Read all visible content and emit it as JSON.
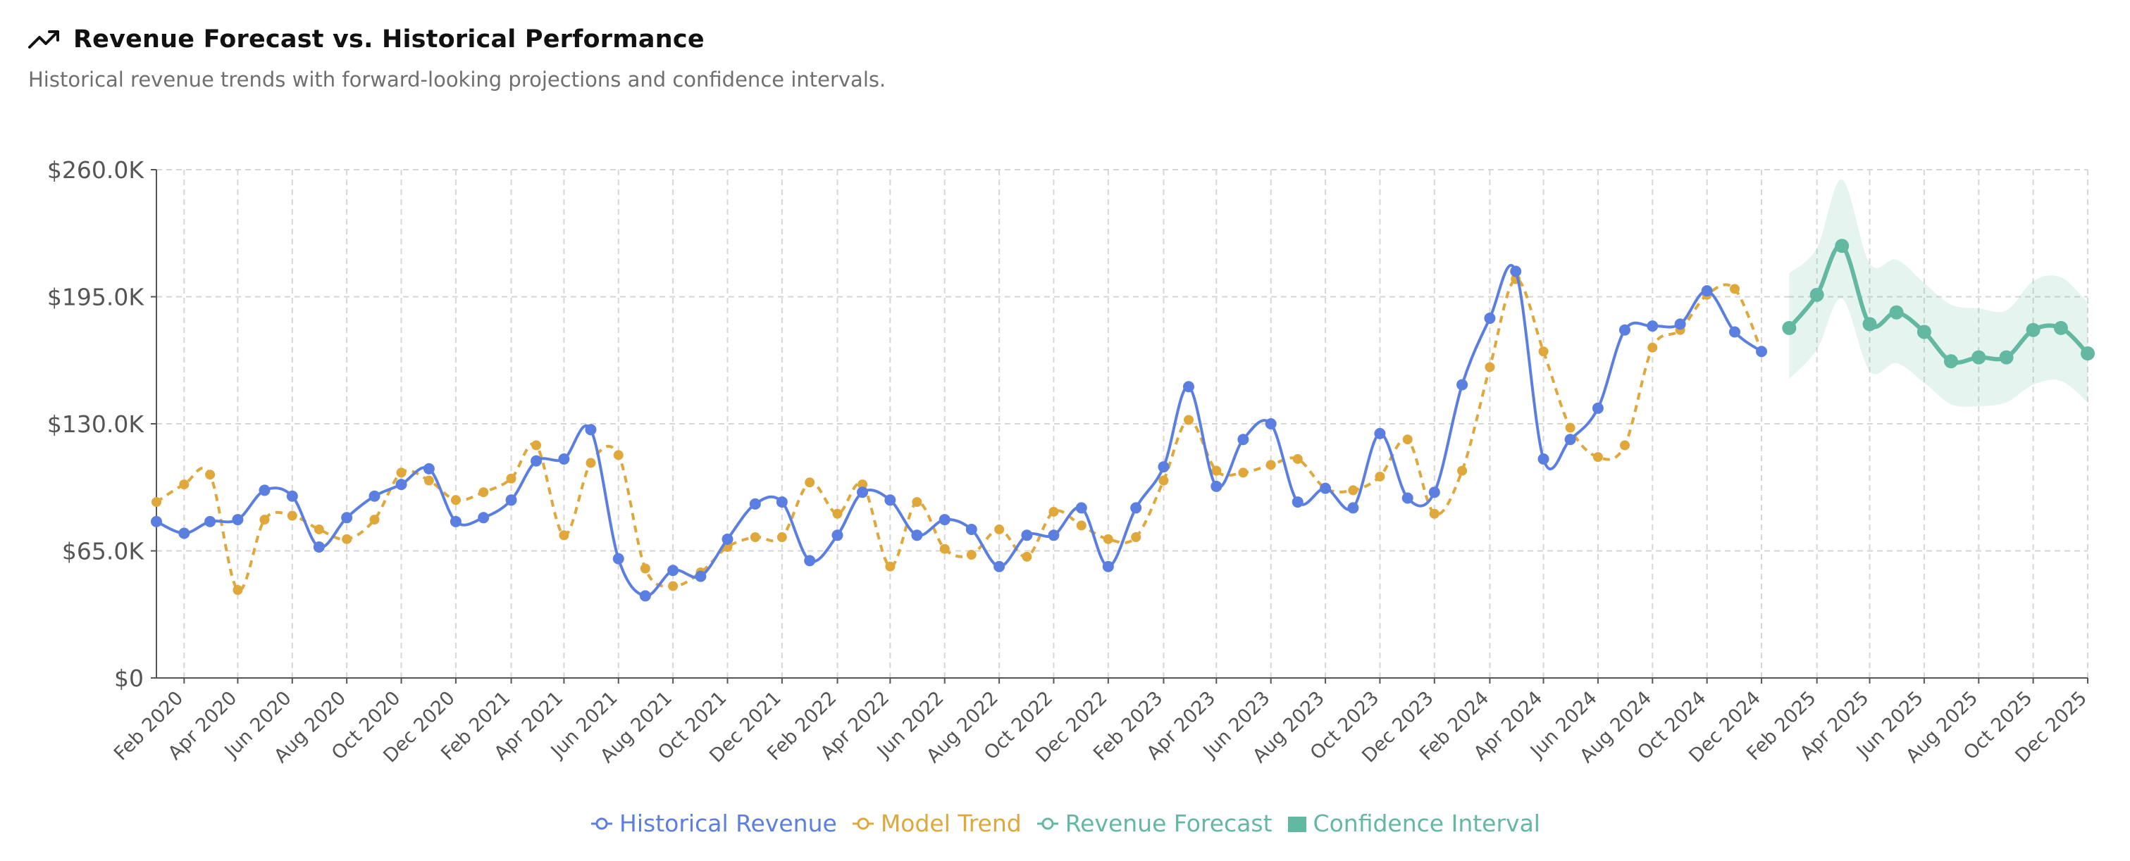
{
  "header": {
    "title": "Revenue Forecast vs. Historical Performance",
    "subtitle": "Historical revenue trends with forward-looking projections and confidence intervals.",
    "icon": "trending-up-icon"
  },
  "legend": {
    "historical": "Historical Revenue",
    "trend": "Model Trend",
    "forecast": "Revenue Forecast",
    "ci": "Confidence Interval"
  },
  "colors": {
    "historical": "#5b7fe0",
    "trend": "#e0a73b",
    "forecast": "#62b8a0",
    "ci": "#62b8a0",
    "grid": "#d6d6d6",
    "axis": "#555555",
    "tick_text": "#555555"
  },
  "chart_data": {
    "type": "line",
    "x_ticks": [
      "Feb 2020",
      "Apr 2020",
      "Jun 2020",
      "Aug 2020",
      "Oct 2020",
      "Dec 2020",
      "Feb 2021",
      "Apr 2021",
      "Jun 2021",
      "Aug 2021",
      "Oct 2021",
      "Dec 2021",
      "Feb 2022",
      "Apr 2022",
      "Jun 2022",
      "Aug 2022",
      "Oct 2022",
      "Dec 2022",
      "Feb 2023",
      "Apr 2023",
      "Jun 2023",
      "Aug 2023",
      "Oct 2023",
      "Dec 2023",
      "Feb 2024",
      "Apr 2024",
      "Jun 2024",
      "Aug 2024",
      "Oct 2024",
      "Dec 2024",
      "Feb 2025",
      "Apr 2025",
      "Jun 2025",
      "Aug 2025",
      "Oct 2025",
      "Dec 2025"
    ],
    "y_ticks": [
      "$0",
      "$65.0K",
      "$130.0K",
      "$195.0K",
      "$260.0K"
    ],
    "ylim": [
      0,
      260000
    ],
    "grid": true,
    "legend_position": "bottom",
    "series": [
      {
        "name": "Historical Revenue",
        "style": "solid",
        "points": [
          [
            "2020-01",
            80000
          ],
          [
            "2020-02",
            74000
          ],
          [
            "2020-03",
            80000
          ],
          [
            "2020-04",
            81000
          ],
          [
            "2020-05",
            96000
          ],
          [
            "2020-06",
            93000
          ],
          [
            "2020-07",
            67000
          ],
          [
            "2020-08",
            82000
          ],
          [
            "2020-09",
            93000
          ],
          [
            "2020-10",
            99000
          ],
          [
            "2020-11",
            107000
          ],
          [
            "2020-12",
            80000
          ],
          [
            "2021-01",
            82000
          ],
          [
            "2021-02",
            91000
          ],
          [
            "2021-03",
            111000
          ],
          [
            "2021-04",
            112000
          ],
          [
            "2021-05",
            127000
          ],
          [
            "2021-06",
            61000
          ],
          [
            "2021-07",
            42000
          ],
          [
            "2021-08",
            55000
          ],
          [
            "2021-09",
            52000
          ],
          [
            "2021-10",
            71000
          ],
          [
            "2021-11",
            89000
          ],
          [
            "2021-12",
            90000
          ],
          [
            "2022-01",
            60000
          ],
          [
            "2022-02",
            73000
          ],
          [
            "2022-03",
            95000
          ],
          [
            "2022-04",
            91000
          ],
          [
            "2022-05",
            73000
          ],
          [
            "2022-06",
            81000
          ],
          [
            "2022-07",
            76000
          ],
          [
            "2022-08",
            57000
          ],
          [
            "2022-09",
            73000
          ],
          [
            "2022-10",
            73000
          ],
          [
            "2022-11",
            87000
          ],
          [
            "2022-12",
            57000
          ],
          [
            "2023-01",
            87000
          ],
          [
            "2023-02",
            108000
          ],
          [
            "2023-03",
            149000
          ],
          [
            "2023-04",
            98000
          ],
          [
            "2023-05",
            122000
          ],
          [
            "2023-06",
            130000
          ],
          [
            "2023-07",
            90000
          ],
          [
            "2023-08",
            97000
          ],
          [
            "2023-09",
            87000
          ],
          [
            "2023-10",
            125000
          ],
          [
            "2023-11",
            92000
          ],
          [
            "2023-12",
            95000
          ],
          [
            "2024-01",
            150000
          ],
          [
            "2024-02",
            184000
          ],
          [
            "2024-03",
            208000
          ],
          [
            "2024-04",
            112000
          ],
          [
            "2024-05",
            122000
          ],
          [
            "2024-06",
            138000
          ],
          [
            "2024-07",
            178000
          ],
          [
            "2024-08",
            180000
          ],
          [
            "2024-09",
            181000
          ],
          [
            "2024-10",
            198000
          ],
          [
            "2024-11",
            177000
          ],
          [
            "2024-12",
            167000
          ]
        ]
      },
      {
        "name": "Model Trend",
        "style": "dashed",
        "points": [
          [
            "2020-01",
            90000
          ],
          [
            "2020-02",
            99000
          ],
          [
            "2020-03",
            104000
          ],
          [
            "2020-04",
            45000
          ],
          [
            "2020-05",
            81000
          ],
          [
            "2020-06",
            83000
          ],
          [
            "2020-07",
            76000
          ],
          [
            "2020-08",
            71000
          ],
          [
            "2020-09",
            81000
          ],
          [
            "2020-10",
            105000
          ],
          [
            "2020-11",
            101000
          ],
          [
            "2020-12",
            91000
          ],
          [
            "2021-01",
            95000
          ],
          [
            "2021-02",
            102000
          ],
          [
            "2021-03",
            119000
          ],
          [
            "2021-04",
            73000
          ],
          [
            "2021-05",
            110000
          ],
          [
            "2021-06",
            114000
          ],
          [
            "2021-07",
            56000
          ],
          [
            "2021-08",
            47000
          ],
          [
            "2021-09",
            54000
          ],
          [
            "2021-10",
            67000
          ],
          [
            "2021-11",
            72000
          ],
          [
            "2021-12",
            72000
          ],
          [
            "2022-01",
            100000
          ],
          [
            "2022-02",
            84000
          ],
          [
            "2022-03",
            99000
          ],
          [
            "2022-04",
            57000
          ],
          [
            "2022-05",
            90000
          ],
          [
            "2022-06",
            66000
          ],
          [
            "2022-07",
            63000
          ],
          [
            "2022-08",
            76000
          ],
          [
            "2022-09",
            62000
          ],
          [
            "2022-10",
            85000
          ],
          [
            "2022-11",
            78000
          ],
          [
            "2022-12",
            71000
          ],
          [
            "2023-01",
            72000
          ],
          [
            "2023-02",
            101000
          ],
          [
            "2023-03",
            132000
          ],
          [
            "2023-04",
            106000
          ],
          [
            "2023-05",
            105000
          ],
          [
            "2023-06",
            109000
          ],
          [
            "2023-07",
            112000
          ],
          [
            "2023-08",
            97000
          ],
          [
            "2023-09",
            96000
          ],
          [
            "2023-10",
            103000
          ],
          [
            "2023-11",
            122000
          ],
          [
            "2023-12",
            84000
          ],
          [
            "2024-01",
            106000
          ],
          [
            "2024-02",
            159000
          ],
          [
            "2024-03",
            204000
          ],
          [
            "2024-04",
            167000
          ],
          [
            "2024-05",
            128000
          ],
          [
            "2024-06",
            113000
          ],
          [
            "2024-07",
            119000
          ],
          [
            "2024-08",
            169000
          ],
          [
            "2024-09",
            178000
          ],
          [
            "2024-10",
            196000
          ],
          [
            "2024-11",
            199000
          ],
          [
            "2024-12",
            167000
          ]
        ]
      },
      {
        "name": "Revenue Forecast",
        "style": "solid",
        "points": [
          [
            "2025-01",
            179000
          ],
          [
            "2025-02",
            196000
          ],
          [
            "2025-03",
            221000
          ],
          [
            "2025-04",
            181000
          ],
          [
            "2025-05",
            187000
          ],
          [
            "2025-06",
            177000
          ],
          [
            "2025-07",
            162000
          ],
          [
            "2025-08",
            164000
          ],
          [
            "2025-09",
            164000
          ],
          [
            "2025-10",
            178000
          ],
          [
            "2025-11",
            179000
          ],
          [
            "2025-12",
            166000
          ]
        ]
      },
      {
        "name": "Confidence Interval",
        "type": "area",
        "band": [
          [
            "2025-01",
            153000,
            207000
          ],
          [
            "2025-02",
            168000,
            220000
          ],
          [
            "2025-03",
            194000,
            255000
          ],
          [
            "2025-04",
            157000,
            212000
          ],
          [
            "2025-05",
            161000,
            214000
          ],
          [
            "2025-06",
            151000,
            202000
          ],
          [
            "2025-07",
            140000,
            191000
          ],
          [
            "2025-08",
            139000,
            189000
          ],
          [
            "2025-09",
            141000,
            188000
          ],
          [
            "2025-10",
            150000,
            203000
          ],
          [
            "2025-11",
            152000,
            205000
          ],
          [
            "2025-12",
            141000,
            192000
          ]
        ]
      }
    ]
  }
}
